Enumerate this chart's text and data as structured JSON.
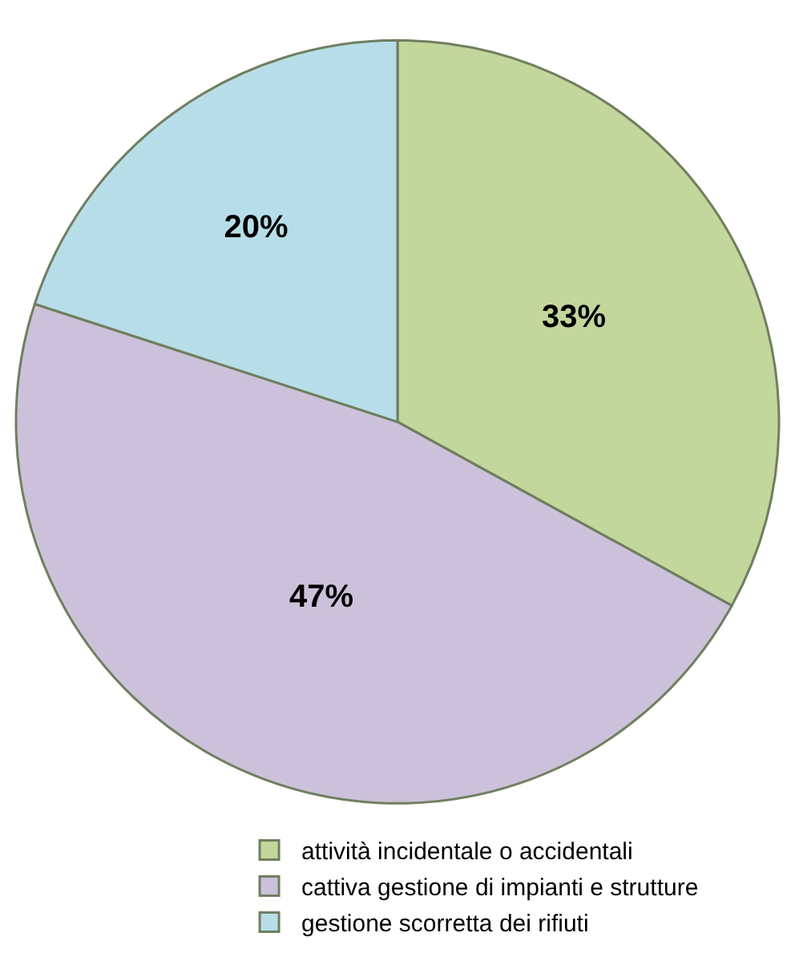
{
  "chart_data": {
    "type": "pie",
    "categories": [
      "attività incidentale o accidentali",
      "cattiva gestione di impianti e strutture",
      "gestione scorretta dei rifiuti"
    ],
    "values": [
      33,
      47,
      20
    ],
    "colors": [
      "#c3d69b",
      "#ccc1da",
      "#b7dee8"
    ],
    "value_labels": [
      "33%",
      "47%",
      "20%"
    ],
    "legend": "bottom"
  }
}
